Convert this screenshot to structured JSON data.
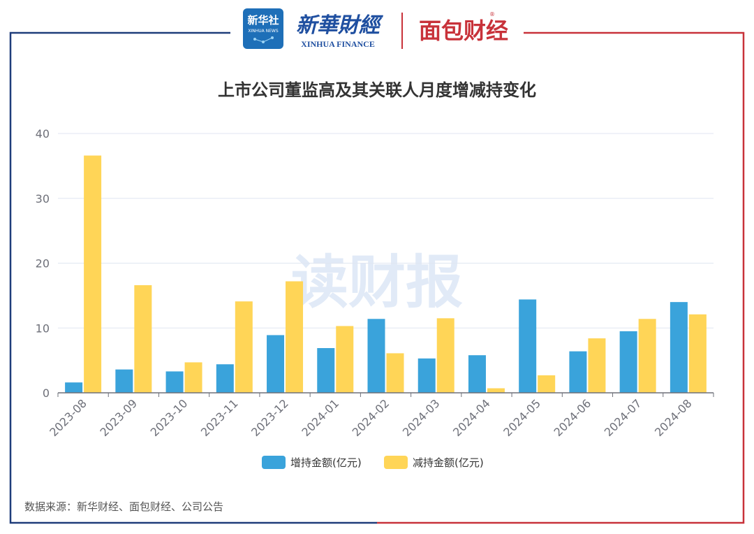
{
  "header": {
    "xinhua_she_text": "新华社",
    "xinhua_she_sub": "XINHUA NEWS",
    "xinhua_finance_cn": "新華財經",
    "xinhua_finance_en": "XINHUA FINANCE",
    "mianbao_logo_text": "面包财经",
    "registered_mark": "®"
  },
  "watermark": "读财报",
  "source_note": "数据来源：新华财经、面包财经、公司公告",
  "colors": {
    "increase": "#3AA3DB",
    "decrease": "#FFD557",
    "frame_left": "#1F3D7A",
    "frame_right": "#C8323A",
    "title": "#333333",
    "axis_text": "#6E7079",
    "grid": "#E0E6F1"
  },
  "chart_data": {
    "type": "bar",
    "title": "上市公司董监高及其关联人月度增减持变化",
    "categories": [
      "2023-08",
      "2023-09",
      "2023-10",
      "2023-11",
      "2023-12",
      "2024-01",
      "2024-02",
      "2024-03",
      "2024-04",
      "2024-05",
      "2024-06",
      "2024-07",
      "2024-08"
    ],
    "series": [
      {
        "name": "增持金额(亿元)",
        "values": [
          1.6,
          3.6,
          3.3,
          4.4,
          8.9,
          6.9,
          11.4,
          5.3,
          5.8,
          14.4,
          6.4,
          9.5,
          14.0
        ]
      },
      {
        "name": "减持金额(亿元)",
        "values": [
          36.6,
          16.6,
          4.7,
          14.1,
          17.2,
          10.3,
          6.1,
          11.5,
          0.7,
          2.7,
          8.4,
          11.4,
          12.1
        ]
      }
    ],
    "ylim": [
      0,
      40
    ],
    "yticks": [
      0,
      10,
      20,
      30,
      40
    ],
    "grid": true,
    "legend_position": "bottom-center"
  }
}
